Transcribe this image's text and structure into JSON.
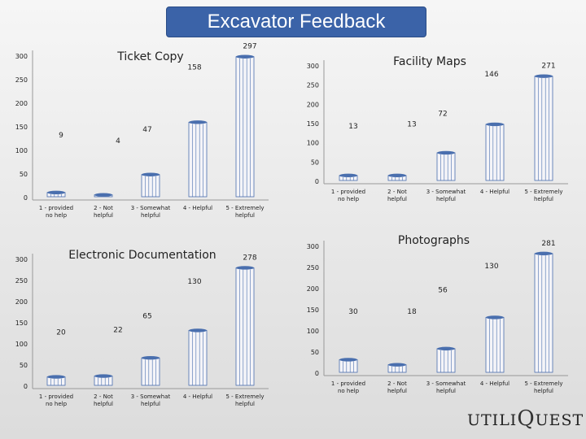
{
  "page": {
    "title": "Excavator Feedback"
  },
  "branding": {
    "part1": "UTILI",
    "part2": "Q",
    "part3": "UEST"
  },
  "colors": {
    "title_bg": "#3b63a8",
    "bar_fill": "#f4f4f8",
    "bar_stroke": "#4a6fae"
  },
  "chart_data": [
    {
      "type": "bar",
      "title": "Ticket Copy",
      "categories": [
        "1 - provided no help",
        "2 - Not helpful",
        "3 - Somewhat helpful",
        "4 - Helpful",
        "5 - Extremely helpful"
      ],
      "values": [
        9,
        4,
        47,
        158,
        297
      ],
      "y_ticks": [
        "0",
        "50",
        "100",
        "150",
        "200",
        "250",
        "300"
      ],
      "ylim": [
        0,
        300
      ]
    },
    {
      "type": "bar",
      "title": "Facility Maps",
      "categories": [
        "1 - provided no help",
        "2 - Not helpful",
        "3 - Somewhat helpful",
        "4 - Helpful",
        "5 - Extremely helpful"
      ],
      "values": [
        13,
        13,
        72,
        146,
        271
      ],
      "y_ticks": [
        "0",
        "50",
        "100",
        "150",
        "200",
        "250",
        "300"
      ],
      "ylim": [
        0,
        300
      ]
    },
    {
      "type": "bar",
      "title": "Electronic Documentation",
      "categories": [
        "1 - provided no help",
        "2 - Not helpful",
        "3 - Somewhat helpful",
        "4 - Helpful",
        "5 - Extremely helpful"
      ],
      "values": [
        20,
        22,
        65,
        130,
        278
      ],
      "y_ticks": [
        "0",
        "50",
        "100",
        "150",
        "200",
        "250",
        "300"
      ],
      "ylim": [
        0,
        300
      ]
    },
    {
      "type": "bar",
      "title": "Photographs",
      "categories": [
        "1 - provided no help",
        "2 - Not helpful",
        "3 - Somewhat helpful",
        "4 - Helpful",
        "5 - Extremely helpful"
      ],
      "values": [
        30,
        18,
        56,
        130,
        281
      ],
      "y_ticks": [
        "0",
        "50",
        "100",
        "150",
        "200",
        "250",
        "300"
      ],
      "ylim": [
        0,
        300
      ]
    }
  ]
}
